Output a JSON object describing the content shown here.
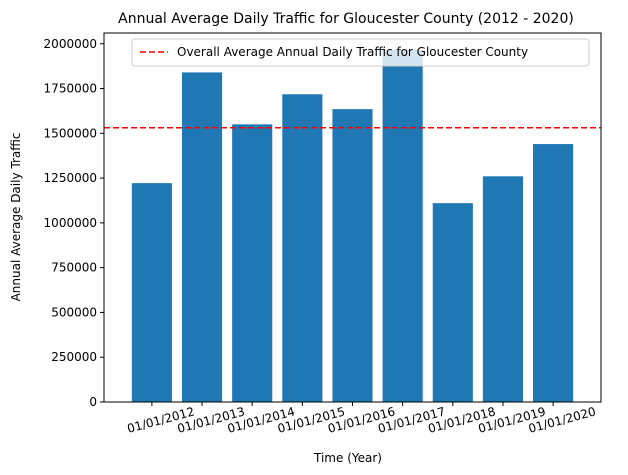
{
  "chart_data": {
    "type": "bar",
    "title": "Annual Average Daily Traffic for Gloucester County (2012 - 2020)",
    "xlabel": "Time (Year)",
    "ylabel": "Annual Average Daily Traffic",
    "categories": [
      "01/01/2012",
      "01/01/2013",
      "01/01/2014",
      "01/01/2015",
      "01/01/2016",
      "01/01/2017",
      "01/01/2018",
      "01/01/2019",
      "01/01/2020"
    ],
    "values": [
      1222000,
      1840000,
      1550000,
      1718000,
      1635000,
      1965000,
      1110000,
      1260000,
      1440000
    ],
    "ylim": [
      0,
      2060000
    ],
    "yticks": [
      0,
      250000,
      500000,
      750000,
      1000000,
      1250000,
      1500000,
      1750000,
      2000000
    ],
    "ytick_labels": [
      "0",
      "250000",
      "500000",
      "750000",
      "1000000",
      "1250000",
      "1500000",
      "1750000",
      "2000000"
    ],
    "bar_color": "#1f77b4",
    "reference_line": {
      "value": 1531000,
      "label": "Overall Average Annual Daily Traffic for Gloucester County",
      "color": "#ff0000",
      "style": "dashed"
    },
    "legend_position": "top-right",
    "grid": false,
    "xtick_rotation_deg": 15
  }
}
